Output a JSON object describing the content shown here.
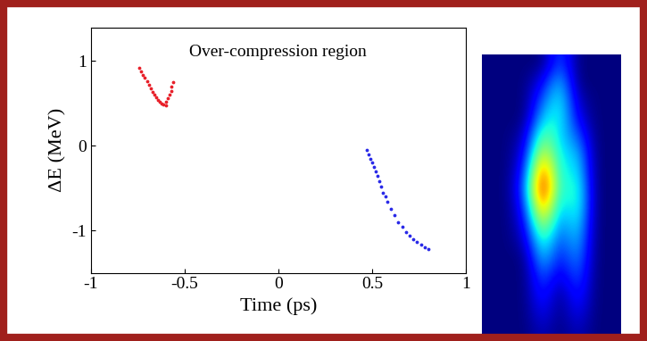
{
  "chart_data": {
    "type": "scatter",
    "annotation": "Over-compression region",
    "x_label": "Time (ps)",
    "y_label": "ΔE (MeV)",
    "xlim": [
      -1,
      1
    ],
    "xticks": [
      -1,
      -0.5,
      0,
      0.5,
      1
    ],
    "ylim": [
      -1.5,
      1.4
    ],
    "yticks": [
      -1,
      0,
      1
    ],
    "series": [
      {
        "color": "#e8202a",
        "marker": "point",
        "x": [
          -0.74,
          -0.73,
          -0.72,
          -0.71,
          -0.7,
          -0.69,
          -0.68,
          -0.67,
          -0.66,
          -0.65,
          -0.64,
          -0.63,
          -0.62,
          -0.61,
          -0.6,
          -0.6,
          -0.59,
          -0.58,
          -0.57,
          -0.57,
          -0.56
        ],
        "values": [
          0.92,
          0.88,
          0.84,
          0.8,
          0.76,
          0.72,
          0.68,
          0.64,
          0.6,
          0.57,
          0.54,
          0.52,
          0.5,
          0.49,
          0.48,
          0.52,
          0.56,
          0.6,
          0.65,
          0.7,
          0.75
        ]
      },
      {
        "color": "#2a2ae8",
        "marker": "point",
        "x": [
          0.47,
          0.48,
          0.49,
          0.5,
          0.51,
          0.52,
          0.53,
          0.54,
          0.55,
          0.56,
          0.57,
          0.58,
          0.6,
          0.62,
          0.64,
          0.66,
          0.68,
          0.7,
          0.72,
          0.74,
          0.76,
          0.78,
          0.8
        ],
        "values": [
          -0.05,
          -0.1,
          -0.15,
          -0.2,
          -0.25,
          -0.3,
          -0.36,
          -0.42,
          -0.48,
          -0.55,
          -0.6,
          -0.66,
          -0.75,
          -0.82,
          -0.9,
          -0.96,
          -1.02,
          -1.06,
          -1.1,
          -1.14,
          -1.17,
          -1.2,
          -1.22
        ]
      }
    ],
    "image": {
      "cells": [
        [
          0,
          0,
          0,
          0,
          0.2,
          0,
          0,
          0
        ],
        [
          0,
          0,
          0,
          0.1,
          0.3,
          0,
          0,
          0
        ],
        [
          0,
          0,
          0,
          0.2,
          0.35,
          0.05,
          0,
          0
        ],
        [
          0,
          0,
          0,
          0.3,
          0.35,
          0.1,
          0,
          0
        ],
        [
          0,
          0,
          0.05,
          0.45,
          0.3,
          0.2,
          0,
          0
        ],
        [
          0,
          0,
          0.1,
          0.6,
          0.3,
          0.3,
          0,
          0
        ],
        [
          0,
          0,
          0.15,
          0.8,
          0.3,
          0.35,
          0,
          0
        ],
        [
          0,
          0,
          0.2,
          0.9,
          0.3,
          0.4,
          0,
          0
        ],
        [
          0,
          0,
          0.15,
          0.75,
          0.25,
          0.4,
          0,
          0
        ],
        [
          0,
          0,
          0.1,
          0.55,
          0.2,
          0.35,
          0,
          0
        ],
        [
          0,
          0,
          0.05,
          0.4,
          0.15,
          0.3,
          0,
          0
        ],
        [
          0,
          0,
          0,
          0.3,
          0.1,
          0.25,
          0,
          0
        ],
        [
          0,
          0,
          0,
          0.2,
          0.05,
          0.2,
          0,
          0
        ],
        [
          0,
          0,
          0,
          0.15,
          0,
          0.15,
          0,
          0
        ],
        [
          0,
          0,
          0,
          0.1,
          0,
          0.1,
          0,
          0
        ],
        [
          0,
          0,
          0,
          0.05,
          0,
          0.05,
          0,
          0
        ]
      ]
    }
  }
}
